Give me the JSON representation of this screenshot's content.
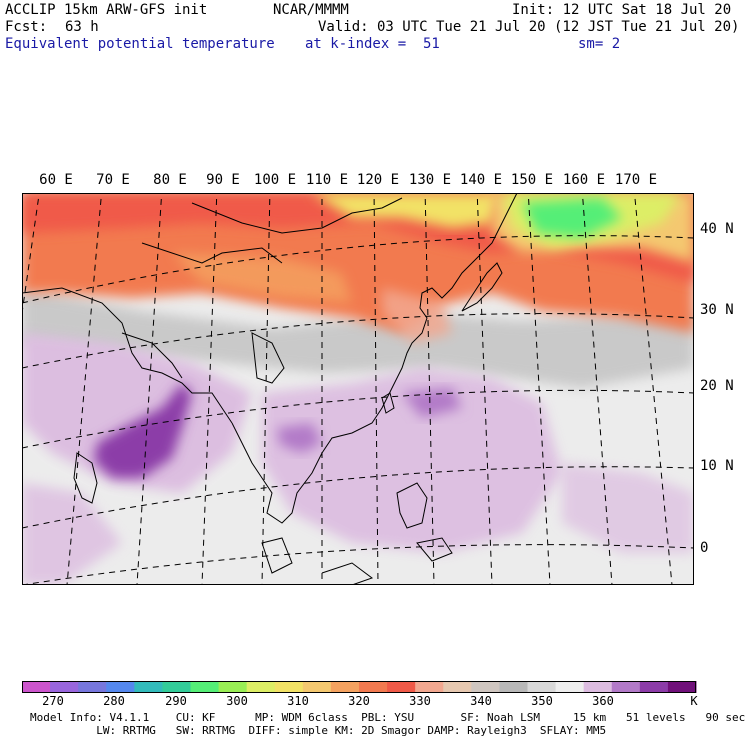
{
  "header": {
    "model_line": "ACCLIP 15km ARW-GFS init",
    "org": "NCAR/MMMM",
    "init": "Init: 12 UTC Sat 18 Jul 20",
    "fcst_label": "Fcst:",
    "fcst_value": "63 h",
    "valid": "Valid: 03 UTC Tue 21 Jul 20 (12 JST Tue 21 Jul 20)",
    "field": "Equivalent potential temperature",
    "level": "at k-index =  51",
    "smoothing": "sm= 2"
  },
  "map": {
    "lon_labels": [
      "60 E",
      "70 E",
      "80 E",
      "90 E",
      "100 E",
      "110 E",
      "120 E",
      "130 E",
      "140 E",
      "150 E",
      "160 E",
      "170 E"
    ],
    "lat_labels": [
      "40 N",
      "30 N",
      "20 N",
      "10 N",
      "0"
    ]
  },
  "colorbar": {
    "colors": [
      "#cc55cc",
      "#9966dd",
      "#7777dd",
      "#5588ee",
      "#33bbbb",
      "#33cc99",
      "#55ee77",
      "#99ee55",
      "#ddee66",
      "#f2e266",
      "#f4c870",
      "#f4a260",
      "#f27a50",
      "#f05a48",
      "#f2a890",
      "#e6c8b0",
      "#cfc6c0",
      "#b8b8b8",
      "#d8d8d8",
      "#eeeeee",
      "#dcbce0",
      "#b27ac8",
      "#8c3ca8",
      "#70107a"
    ],
    "labels": [
      "270",
      "280",
      "290",
      "300",
      "310",
      "320",
      "330",
      "340",
      "350",
      "360",
      "K"
    ]
  },
  "footer": {
    "line1": "Model Info: V4.1.1    CU: KF      MP: WDM 6class  PBL: YSU       SF: Noah LSM     15 km   51 levels   90 sec",
    "line2": "          LW: RRTMG   SW: RRTMG  DIFF: simple KM: 2D Smagor DAMP: Rayleigh3  SFLAY: MM5"
  }
}
